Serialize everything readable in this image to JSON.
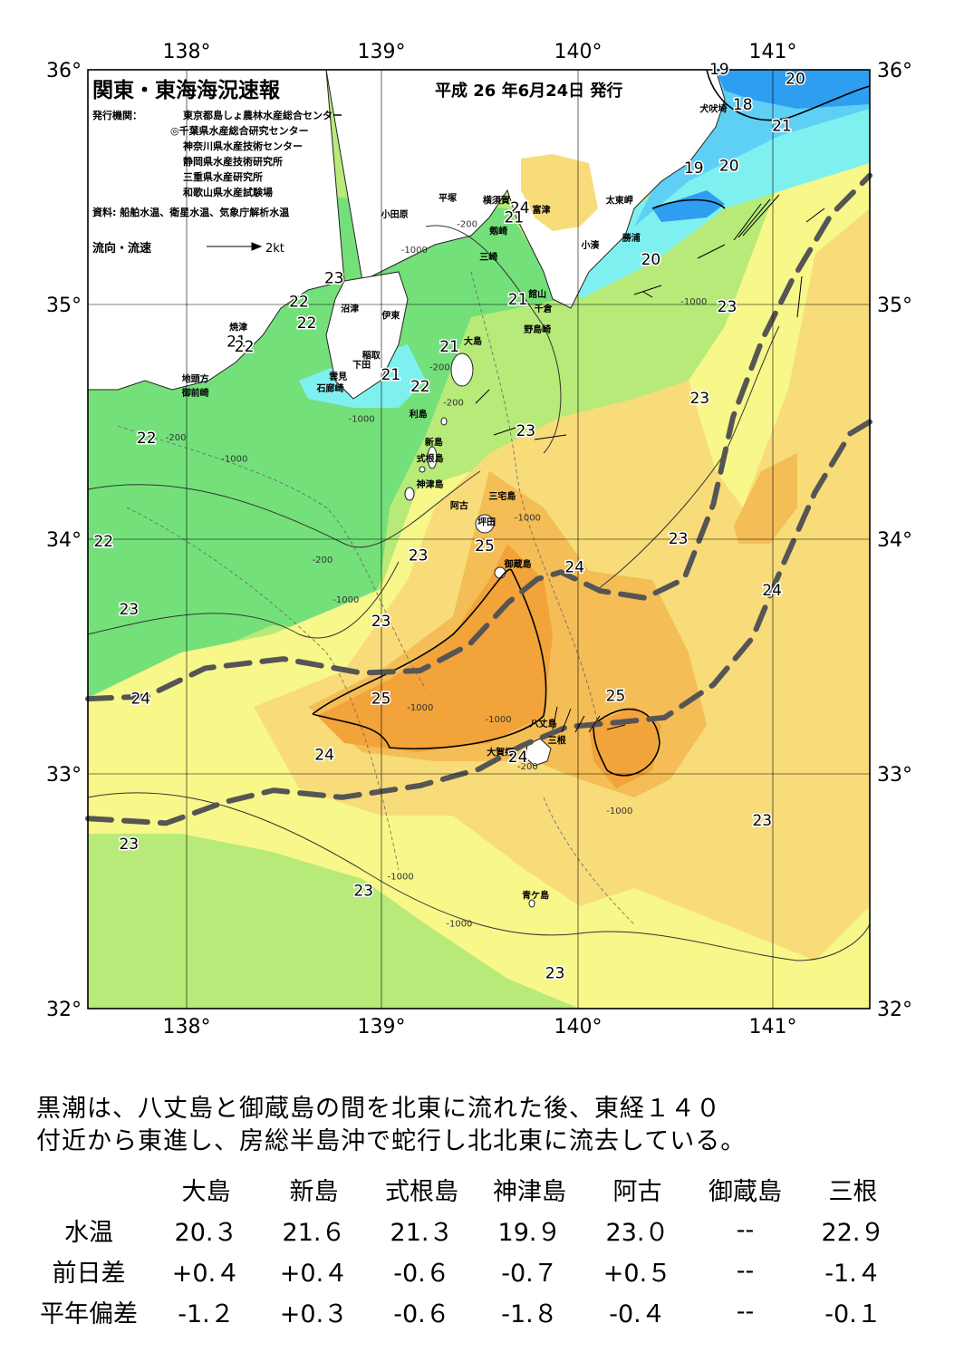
{
  "title": "関東・東海海況速報",
  "date": "平成 26 年6月24日 発行",
  "publisher_label": "発行機関：",
  "publishers": [
    "東京都島しょ農林水産総合センター",
    "◎千葉県水産総合研究センター",
    "神奈川県水産技術センター",
    "静岡県水産技術研究所",
    "三重県水産研究所",
    "和歌山県水産試験場"
  ],
  "sources": "資料: 船舶水温、衛星水温、気象庁解析水温",
  "legend": {
    "label": "流向・流速",
    "speed": "2kt"
  },
  "axes": {
    "lon_labels": [
      "138°",
      "139°",
      "140°",
      "141°"
    ],
    "lat_labels": [
      "36°",
      "35°",
      "34°",
      "33°",
      "32°"
    ],
    "lon_range": [
      137.5,
      141.5
    ],
    "lat_range": [
      32,
      36
    ]
  },
  "colors": {
    "sea_19": "#2d9ef0",
    "sea_20": "#5fd0f5",
    "sea_21": "#7ff0f0",
    "sea_22": "#74e07a",
    "sea_23": "#b7ea78",
    "sea_23_5": "#f7f78a",
    "sea_24": "#f8dc7a",
    "sea_24_5": "#f4bd55",
    "sea_25": "#f2a33a",
    "land": "#ffffff",
    "kuroshio": "#555555"
  },
  "contour_labels": [
    {
      "text": "19",
      "lon": 140.73,
      "lat": 35.98
    },
    {
      "text": "20",
      "lon": 141.12,
      "lat": 35.94
    },
    {
      "text": "18",
      "lon": 140.85,
      "lat": 35.83
    },
    {
      "text": "21",
      "lon": 141.05,
      "lat": 35.74
    },
    {
      "text": "19",
      "lon": 140.6,
      "lat": 35.56
    },
    {
      "text": "20",
      "lon": 140.78,
      "lat": 35.57
    },
    {
      "text": "24",
      "lon": 139.71,
      "lat": 35.39
    },
    {
      "text": "21",
      "lon": 139.68,
      "lat": 35.35
    },
    {
      "text": "20",
      "lon": 140.38,
      "lat": 35.17
    },
    {
      "text": "23",
      "lon": 138.76,
      "lat": 35.09
    },
    {
      "text": "22",
      "lon": 138.58,
      "lat": 34.99
    },
    {
      "text": "21",
      "lon": 139.7,
      "lat": 35.0
    },
    {
      "text": "23",
      "lon": 140.77,
      "lat": 34.97
    },
    {
      "text": "22",
      "lon": 138.62,
      "lat": 34.9
    },
    {
      "text": "21",
      "lon": 138.26,
      "lat": 34.82
    },
    {
      "text": "22",
      "lon": 138.3,
      "lat": 34.8
    },
    {
      "text": "21",
      "lon": 139.35,
      "lat": 34.8
    },
    {
      "text": "21",
      "lon": 139.05,
      "lat": 34.68
    },
    {
      "text": "22",
      "lon": 139.2,
      "lat": 34.63
    },
    {
      "text": "23",
      "lon": 140.63,
      "lat": 34.58
    },
    {
      "text": "23",
      "lon": 139.74,
      "lat": 34.44
    },
    {
      "text": "22",
      "lon": 137.8,
      "lat": 34.41
    },
    {
      "text": "23",
      "lon": 140.52,
      "lat": 33.98
    },
    {
      "text": "25",
      "lon": 139.53,
      "lat": 33.95
    },
    {
      "text": "22",
      "lon": 137.58,
      "lat": 33.97
    },
    {
      "text": "23",
      "lon": 139.19,
      "lat": 33.91
    },
    {
      "text": "24",
      "lon": 139.99,
      "lat": 33.86
    },
    {
      "text": "24",
      "lon": 141.0,
      "lat": 33.76
    },
    {
      "text": "23",
      "lon": 137.71,
      "lat": 33.68
    },
    {
      "text": "23",
      "lon": 139.0,
      "lat": 33.63
    },
    {
      "text": "25",
      "lon": 140.2,
      "lat": 33.31
    },
    {
      "text": "24",
      "lon": 137.77,
      "lat": 33.3
    },
    {
      "text": "25",
      "lon": 139.0,
      "lat": 33.3
    },
    {
      "text": "24",
      "lon": 138.71,
      "lat": 33.06
    },
    {
      "text": "24",
      "lon": 139.7,
      "lat": 33.05
    },
    {
      "text": "23",
      "lon": 140.95,
      "lat": 32.78
    },
    {
      "text": "23",
      "lon": 137.71,
      "lat": 32.68
    },
    {
      "text": "23",
      "lon": 138.91,
      "lat": 32.48
    },
    {
      "text": "23",
      "lon": 139.89,
      "lat": 32.13
    }
  ],
  "places": [
    {
      "text": "犬吠埼",
      "lon": 140.7,
      "lat": 35.82
    },
    {
      "text": "太東岬",
      "lon": 140.22,
      "lat": 35.43
    },
    {
      "text": "勝浦",
      "lon": 140.28,
      "lat": 35.27
    },
    {
      "text": "小湊",
      "lon": 140.07,
      "lat": 35.24
    },
    {
      "text": "横須賀",
      "lon": 139.59,
      "lat": 35.43
    },
    {
      "text": "平塚",
      "lon": 139.34,
      "lat": 35.44
    },
    {
      "text": "小田原",
      "lon": 139.07,
      "lat": 35.37
    },
    {
      "text": "富津",
      "lon": 139.82,
      "lat": 35.39
    },
    {
      "text": "剱崎",
      "lon": 139.6,
      "lat": 35.3
    },
    {
      "text": "三崎",
      "lon": 139.55,
      "lat": 35.19
    },
    {
      "text": "館山",
      "lon": 139.8,
      "lat": 35.03
    },
    {
      "text": "千倉",
      "lon": 139.83,
      "lat": 34.97
    },
    {
      "text": "野島崎",
      "lon": 139.8,
      "lat": 34.88
    },
    {
      "text": "沼津",
      "lon": 138.84,
      "lat": 34.97
    },
    {
      "text": "伊東",
      "lon": 139.05,
      "lat": 34.94
    },
    {
      "text": "焼津",
      "lon": 138.27,
      "lat": 34.89
    },
    {
      "text": "大島",
      "lon": 139.47,
      "lat": 34.83
    },
    {
      "text": "稲取",
      "lon": 138.95,
      "lat": 34.77
    },
    {
      "text": "下田",
      "lon": 138.9,
      "lat": 34.73
    },
    {
      "text": "雲見",
      "lon": 138.78,
      "lat": 34.68
    },
    {
      "text": "石廊崎",
      "lon": 138.74,
      "lat": 34.63
    },
    {
      "text": "地頭方",
      "lon": 138.05,
      "lat": 34.67
    },
    {
      "text": "御前崎",
      "lon": 138.05,
      "lat": 34.61
    },
    {
      "text": "利島",
      "lon": 139.19,
      "lat": 34.52
    },
    {
      "text": "新島",
      "lon": 139.27,
      "lat": 34.4
    },
    {
      "text": "式根島",
      "lon": 139.25,
      "lat": 34.33
    },
    {
      "text": "神津島",
      "lon": 139.25,
      "lat": 34.22
    },
    {
      "text": "三宅島",
      "lon": 139.62,
      "lat": 34.17
    },
    {
      "text": "阿古",
      "lon": 139.4,
      "lat": 34.13
    },
    {
      "text": "坪田",
      "lon": 139.54,
      "lat": 34.06
    },
    {
      "text": "御蔵島",
      "lon": 139.7,
      "lat": 33.88
    },
    {
      "text": "八丈島",
      "lon": 139.83,
      "lat": 33.2
    },
    {
      "text": "三根",
      "lon": 139.9,
      "lat": 33.13
    },
    {
      "text": "大賀郷",
      "lon": 139.61,
      "lat": 33.08
    },
    {
      "text": "青ケ島",
      "lon": 139.79,
      "lat": 32.47
    }
  ],
  "depth_labels": [
    {
      "text": "-200",
      "lon": 139.44,
      "lat": 35.33
    },
    {
      "text": "-1000",
      "lon": 139.17,
      "lat": 35.22
    },
    {
      "text": "-200",
      "lon": 139.3,
      "lat": 34.72
    },
    {
      "text": "-200",
      "lon": 139.37,
      "lat": 34.57
    },
    {
      "text": "-1000",
      "lon": 138.9,
      "lat": 34.5
    },
    {
      "text": "-200",
      "lon": 137.95,
      "lat": 34.42
    },
    {
      "text": "-1000",
      "lon": 138.25,
      "lat": 34.33
    },
    {
      "text": "-200",
      "lon": 138.7,
      "lat": 33.9
    },
    {
      "text": "-1000",
      "lon": 138.82,
      "lat": 33.73
    },
    {
      "text": "-1000",
      "lon": 139.75,
      "lat": 34.08
    },
    {
      "text": "-1000",
      "lon": 139.2,
      "lat": 33.27
    },
    {
      "text": "-1000",
      "lon": 139.6,
      "lat": 33.22
    },
    {
      "text": "-200",
      "lon": 139.75,
      "lat": 33.02
    },
    {
      "text": "-1000",
      "lon": 140.22,
      "lat": 32.83
    },
    {
      "text": "-1000",
      "lon": 139.1,
      "lat": 32.55
    },
    {
      "text": "-1000",
      "lon": 139.4,
      "lat": 32.35
    },
    {
      "text": "-1000",
      "lon": 140.6,
      "lat": 35.0
    }
  ],
  "kuroshio_paths": [
    [
      [
        137.5,
        33.32
      ],
      [
        137.8,
        33.33
      ],
      [
        138.1,
        33.45
      ],
      [
        138.5,
        33.49
      ],
      [
        138.9,
        33.43
      ],
      [
        139.2,
        33.44
      ],
      [
        139.45,
        33.55
      ],
      [
        139.65,
        33.73
      ],
      [
        139.8,
        33.83
      ],
      [
        139.92,
        33.86
      ],
      [
        140.12,
        33.78
      ],
      [
        140.35,
        33.75
      ],
      [
        140.55,
        33.83
      ],
      [
        140.7,
        34.15
      ],
      [
        140.8,
        34.52
      ],
      [
        140.95,
        34.85
      ],
      [
        141.1,
        35.1
      ],
      [
        141.3,
        35.38
      ],
      [
        141.5,
        35.55
      ]
    ],
    [
      [
        137.5,
        32.81
      ],
      [
        137.9,
        32.79
      ],
      [
        138.2,
        32.88
      ],
      [
        138.45,
        32.93
      ],
      [
        138.8,
        32.9
      ],
      [
        139.2,
        32.95
      ],
      [
        139.5,
        33.02
      ],
      [
        139.72,
        33.12
      ],
      [
        139.95,
        33.2
      ],
      [
        140.22,
        33.22
      ],
      [
        140.45,
        33.24
      ],
      [
        140.7,
        33.38
      ],
      [
        140.9,
        33.58
      ],
      [
        141.05,
        33.88
      ],
      [
        141.22,
        34.2
      ],
      [
        141.4,
        34.45
      ],
      [
        141.5,
        34.5
      ]
    ]
  ],
  "summary": [
    "黒潮は、八丈島と御蔵島の間を北東に流れた後、東経１４０",
    "付近から東進し、房総半島沖で蛇行し北北東に流去している。"
  ],
  "table": {
    "columns": [
      "大島",
      "新島",
      "式根島",
      "神津島",
      "阿古",
      "御蔵島",
      "三根"
    ],
    "rows": [
      {
        "label": "水温",
        "values": [
          "20.３",
          "21.６",
          "21.３",
          "19.９",
          "23.０",
          "--",
          "22.９"
        ]
      },
      {
        "label": "前日差",
        "values": [
          "+0.４",
          "+0.４",
          "-0.６",
          "-0.７",
          "+0.５",
          "--",
          "-1.４"
        ]
      },
      {
        "label": "平年偏差",
        "values": [
          "-1.２",
          "+0.３",
          "-0.６",
          "-1.８",
          "-0.４",
          "--",
          "-0.１"
        ]
      }
    ]
  }
}
